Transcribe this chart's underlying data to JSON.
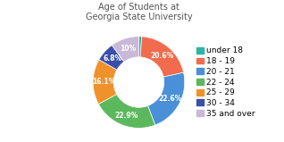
{
  "title": "Age of Students at\nGeorgia State University",
  "labels": [
    "under 18",
    "18 - 19",
    "20 - 21",
    "22 - 24",
    "25 - 29",
    "30 - 34",
    "35 and over"
  ],
  "values": [
    1.0,
    20.6,
    22.6,
    22.9,
    16.1,
    6.8,
    10.0
  ],
  "colors": [
    "#2ab5a5",
    "#f26b4e",
    "#4a90d9",
    "#5cb85c",
    "#f0922b",
    "#3b4faa",
    "#c9b8d8"
  ],
  "pct_labels": [
    "",
    "20.6%",
    "22.6%",
    "22.9%",
    "16.1%",
    "6.8%",
    "10%"
  ],
  "title_fontsize": 7,
  "legend_fontsize": 6.5,
  "background_color": "#ffffff",
  "wedge_linewidth": 0.5,
  "wedge_edgecolor": "#ffffff"
}
